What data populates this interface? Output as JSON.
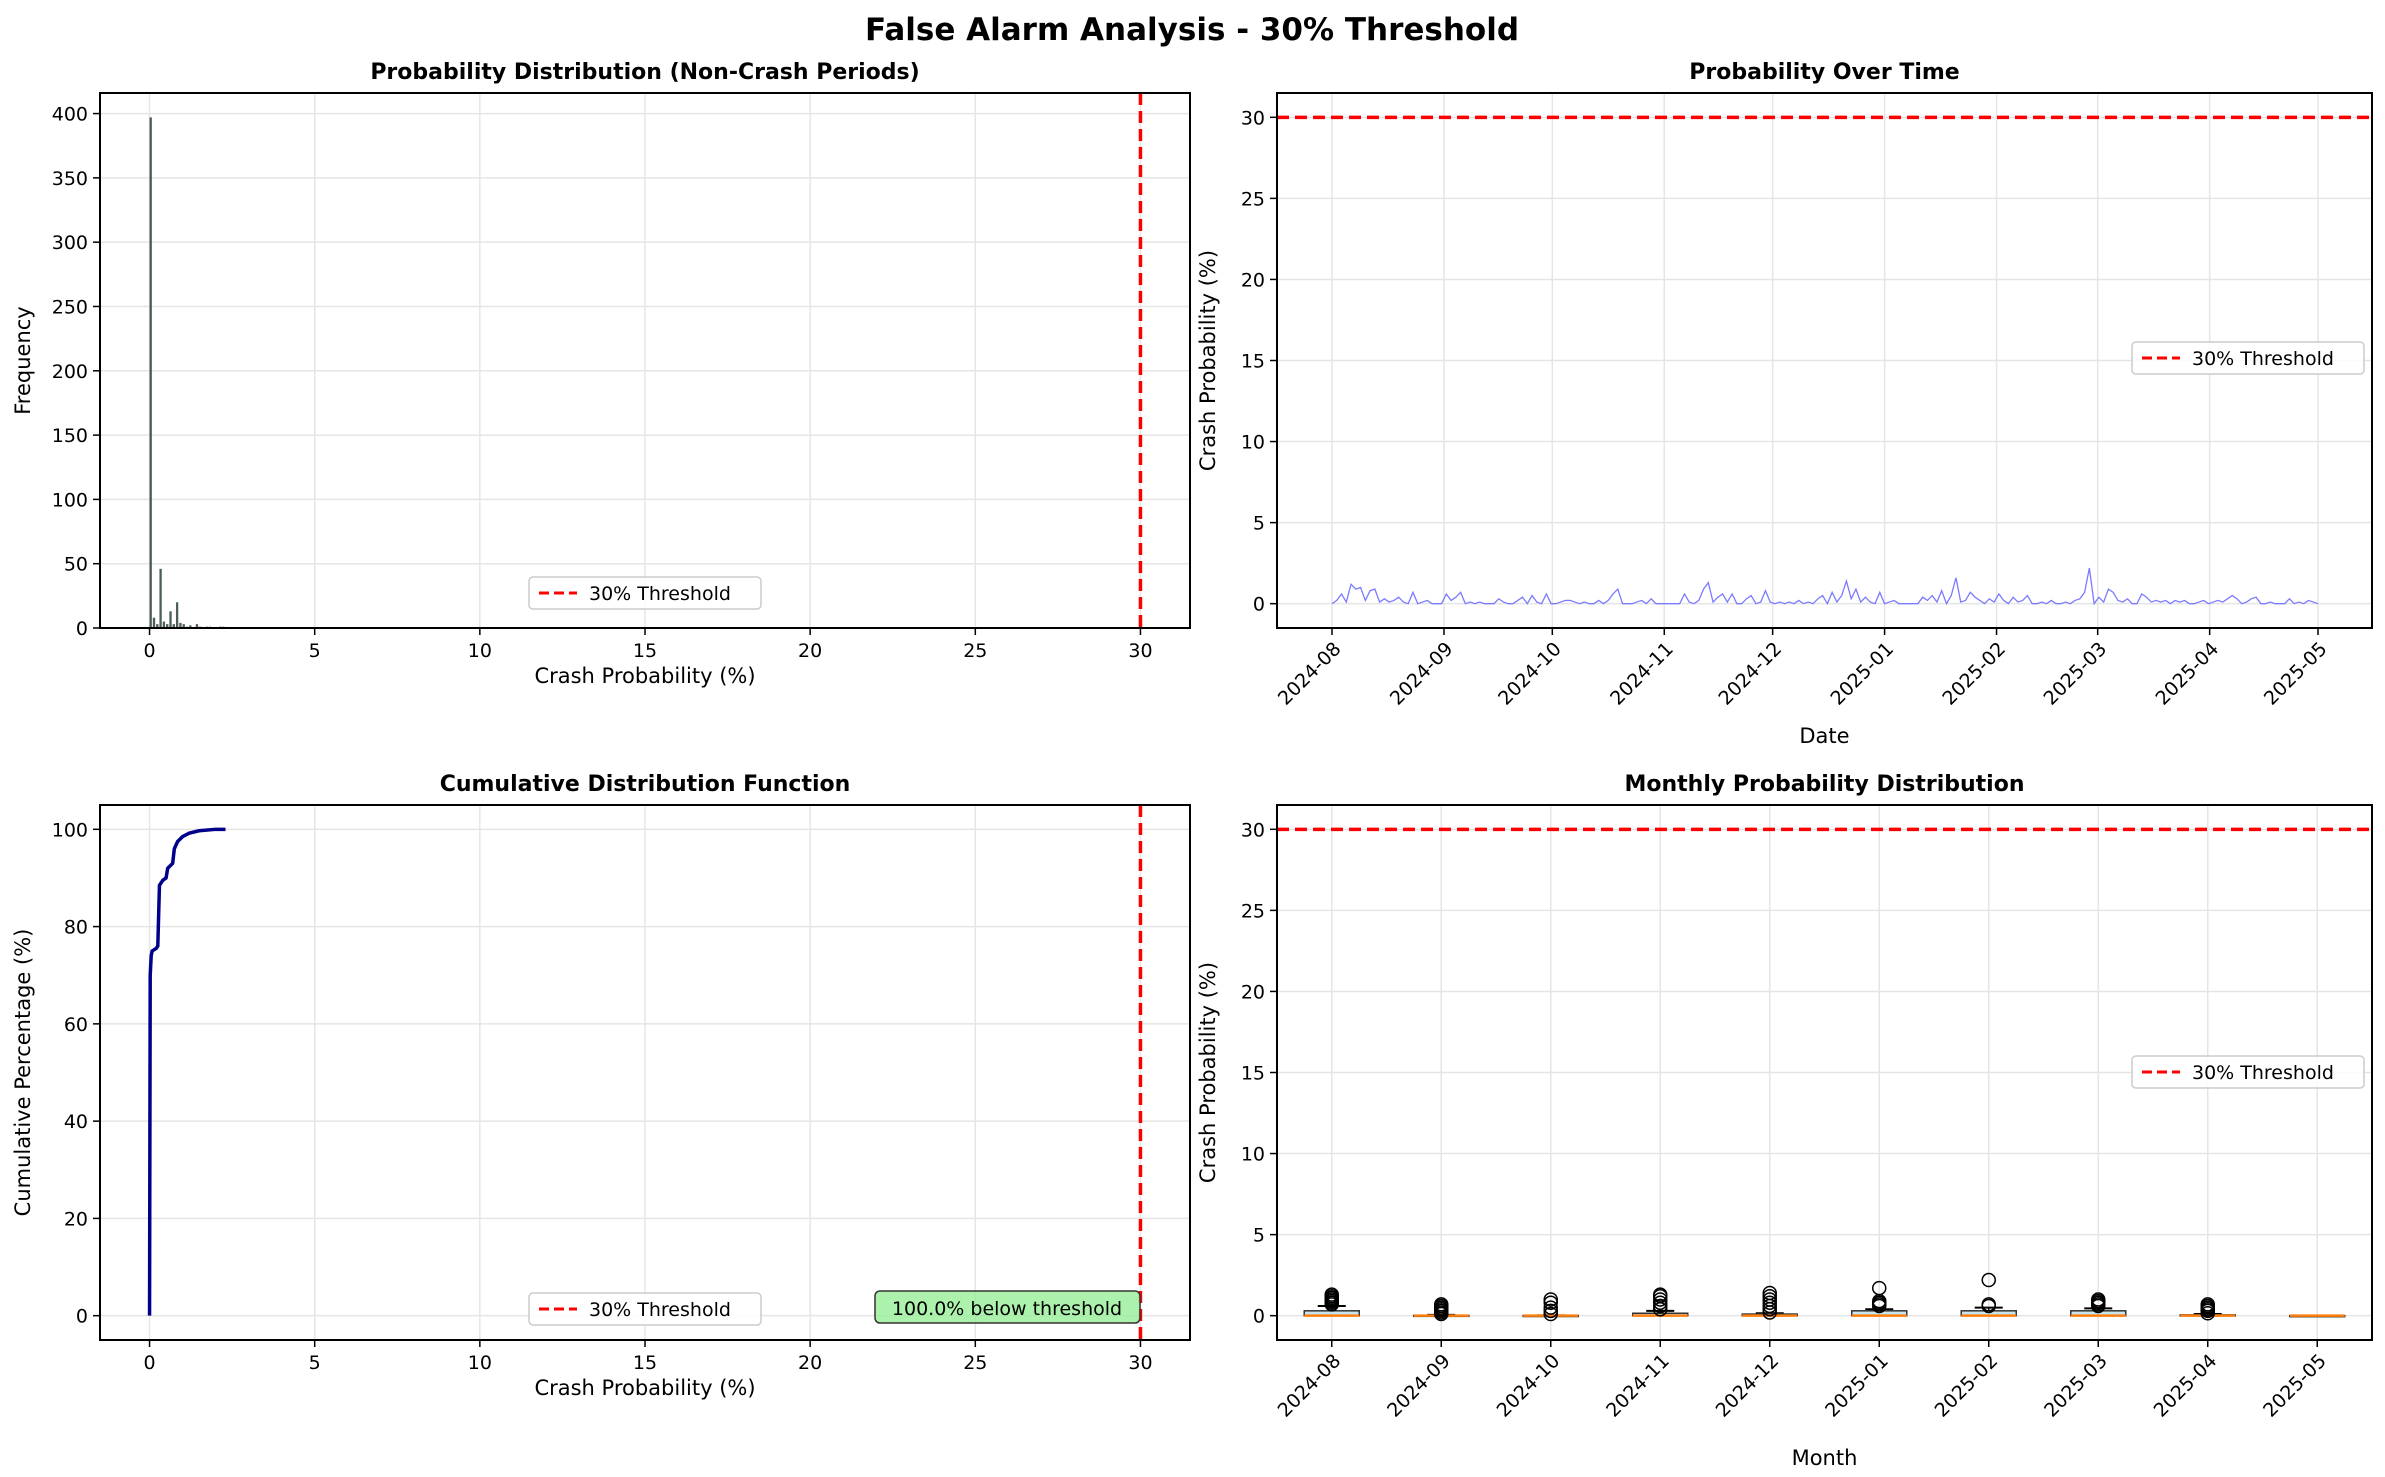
{
  "title": "False Alarm Analysis - 30% Threshold",
  "colors": {
    "threshold": "#ff0000",
    "hist": "#2f3f3f",
    "line": "#7b7bff",
    "cdf": "#00008b",
    "box_fill": "#add8e6",
    "median": "#ff7f0e",
    "annot_fill": "#90ee90",
    "grid": "#e5e5e5"
  },
  "chart_data": [
    {
      "type": "bar",
      "title": "Probability Distribution (Non-Crash Periods)",
      "xlabel": "Crash Probability (%)",
      "ylabel": "Frequency",
      "xlim": [
        -1.5,
        31.5
      ],
      "ylim": [
        0,
        416
      ],
      "xticks": [
        0,
        5,
        10,
        15,
        20,
        25,
        30
      ],
      "yticks": [
        0,
        50,
        100,
        150,
        200,
        250,
        300,
        350,
        400
      ],
      "bin_width": 0.1,
      "bin_starts": [
        0.0,
        0.1,
        0.2,
        0.3,
        0.4,
        0.5,
        0.6,
        0.7,
        0.8,
        0.9,
        1.0,
        1.1,
        1.2,
        1.3,
        1.4,
        1.5,
        1.6,
        1.7,
        1.8,
        1.9,
        2.0,
        2.1,
        2.2
      ],
      "counts": [
        397,
        8,
        3,
        46,
        5,
        3,
        13,
        3,
        20,
        4,
        3,
        1,
        2,
        0,
        3,
        1,
        0,
        1,
        1,
        0,
        0,
        1,
        1
      ],
      "threshold": 30,
      "legend": [
        "30% Threshold"
      ],
      "legend_loc": "lower center",
      "grid": true
    },
    {
      "type": "line",
      "title": "Probability Over Time",
      "xlabel": "Date",
      "ylabel": "Crash Probability (%)",
      "ylim": [
        -1.5,
        31.5
      ],
      "yticks": [
        0,
        5,
        10,
        15,
        20,
        25,
        30
      ],
      "xticks": [
        "2024-08",
        "2024-09",
        "2024-10",
        "2024-11",
        "2024-12",
        "2025-01",
        "2025-02",
        "2025-03",
        "2025-04",
        "2025-05"
      ],
      "start_date": "2024-08-01",
      "step_days": 2,
      "values": [
        0,
        0.2,
        0.6,
        0.1,
        1.2,
        0.9,
        1.0,
        0.2,
        0.8,
        0.9,
        0.1,
        0.3,
        0.1,
        0.2,
        0.4,
        0.1,
        0,
        0.7,
        0,
        0.1,
        0.2,
        0,
        0,
        0,
        0.6,
        0.2,
        0.4,
        0.7,
        0,
        0.1,
        0,
        0.1,
        0,
        0,
        0,
        0.3,
        0.1,
        0,
        0,
        0.2,
        0.4,
        0,
        0.5,
        0.1,
        0,
        0.6,
        0,
        0,
        0.1,
        0.2,
        0.2,
        0.1,
        0,
        0.1,
        0,
        0,
        0.2,
        0,
        0.2,
        0.6,
        0.9,
        0,
        0,
        0,
        0.1,
        0.2,
        0,
        0.3,
        0,
        0,
        0,
        0,
        0,
        0,
        0.6,
        0.1,
        0,
        0.2,
        0.9,
        1.3,
        0.1,
        0.4,
        0.6,
        0.1,
        0.6,
        0,
        0,
        0.3,
        0.5,
        0,
        0.1,
        0.8,
        0.1,
        0,
        0.1,
        0,
        0.1,
        0,
        0.2,
        0,
        0.1,
        0,
        0.3,
        0.5,
        0,
        0.7,
        0.1,
        0.5,
        1.4,
        0.3,
        0.9,
        0.1,
        0.4,
        0.1,
        0,
        0.7,
        0,
        0.1,
        0.2,
        0,
        0,
        0,
        0,
        0,
        0.4,
        0.2,
        0.5,
        0.1,
        0.8,
        0,
        0.5,
        1.6,
        0.1,
        0.2,
        0.7,
        0.4,
        0.2,
        0,
        0.3,
        0.1,
        0.6,
        0.2,
        0,
        0.4,
        0.1,
        0.2,
        0.5,
        0,
        0,
        0.1,
        0,
        0.2,
        0,
        0,
        0.1,
        0,
        0.2,
        0.3,
        0.7,
        2.2,
        0,
        0.4,
        0.1,
        0.9,
        0.7,
        0.2,
        0.1,
        0.3,
        0,
        0,
        0.6,
        0.4,
        0.1,
        0.2,
        0.1,
        0.2,
        0,
        0.2,
        0.1,
        0.2,
        0,
        0,
        0.1,
        0.2,
        0,
        0.1,
        0.2,
        0.1,
        0.3,
        0.5,
        0.3,
        0,
        0.1,
        0.3,
        0.4,
        0,
        0,
        0.1,
        0,
        0,
        0,
        0.3,
        0,
        0.1,
        0,
        0.2,
        0.1,
        0
      ],
      "threshold": 30,
      "legend": [
        "30% Threshold"
      ],
      "legend_loc": "center right",
      "grid": true
    },
    {
      "type": "line",
      "title": "Cumulative Distribution Function",
      "xlabel": "Crash Probability (%)",
      "ylabel": "Cumulative Percentage (%)",
      "xlim": [
        -1.5,
        31.5
      ],
      "ylim": [
        -5,
        105
      ],
      "xticks": [
        0,
        5,
        10,
        15,
        20,
        25,
        30
      ],
      "yticks": [
        0,
        20,
        40,
        60,
        80,
        100
      ],
      "x": [
        0,
        0.02,
        0.05,
        0.08,
        0.2,
        0.25,
        0.3,
        0.4,
        0.5,
        0.55,
        0.7,
        0.75,
        0.85,
        1.0,
        1.2,
        1.5,
        2.0,
        2.3
      ],
      "y": [
        0,
        70,
        74,
        75,
        75.5,
        76,
        88.5,
        89.5,
        90,
        92,
        93,
        96,
        97.5,
        98.5,
        99.2,
        99.7,
        100,
        100
      ],
      "threshold": 30,
      "annotation": "100.0% below threshold",
      "legend": [
        "30% Threshold"
      ],
      "legend_loc": "lower center",
      "grid": true
    },
    {
      "type": "box",
      "title": "Monthly Probability Distribution",
      "xlabel": "Month",
      "ylabel": "Crash Probability (%)",
      "ylim": [
        -1.5,
        31.5
      ],
      "yticks": [
        0,
        5,
        10,
        15,
        20,
        25,
        30
      ],
      "categories": [
        "2024-08",
        "2024-09",
        "2024-10",
        "2024-11",
        "2024-12",
        "2025-01",
        "2025-02",
        "2025-03",
        "2025-04",
        "2025-05"
      ],
      "boxes": [
        {
          "q1": 0,
          "median": 0,
          "q3": 0.3,
          "whisker_low": 0,
          "whisker_high": 0.6,
          "outliers": [
            0.7,
            0.8,
            0.9,
            1.0,
            1.1,
            1.2,
            1.3
          ]
        },
        {
          "q1": 0,
          "median": 0,
          "q3": 0.02,
          "whisker_low": 0,
          "whisker_high": 0.05,
          "outliers": [
            0.1,
            0.2,
            0.3,
            0.4,
            0.5,
            0.6,
            0.7
          ]
        },
        {
          "q1": 0,
          "median": 0,
          "q3": 0.01,
          "whisker_low": 0,
          "whisker_high": 0.02,
          "outliers": [
            0.1,
            0.3,
            0.5,
            0.8,
            1.0
          ]
        },
        {
          "q1": 0,
          "median": 0,
          "q3": 0.15,
          "whisker_low": 0,
          "whisker_high": 0.3,
          "outliers": [
            0.4,
            0.6,
            0.8,
            1.0,
            1.2,
            1.3
          ]
        },
        {
          "q1": 0,
          "median": 0,
          "q3": 0.1,
          "whisker_low": 0,
          "whisker_high": 0.15,
          "outliers": [
            0.2,
            0.4,
            0.6,
            0.8,
            1.0,
            1.2,
            1.4
          ]
        },
        {
          "q1": 0,
          "median": 0,
          "q3": 0.3,
          "whisker_low": 0,
          "whisker_high": 0.4,
          "outliers": [
            0.6,
            0.7,
            0.8,
            0.9,
            1.7
          ]
        },
        {
          "q1": 0,
          "median": 0,
          "q3": 0.3,
          "whisker_low": 0,
          "whisker_high": 0.5,
          "outliers": [
            0.6,
            0.7,
            2.2
          ]
        },
        {
          "q1": 0,
          "median": 0,
          "q3": 0.3,
          "whisker_low": 0,
          "whisker_high": 0.45,
          "outliers": [
            0.6,
            0.7,
            0.8,
            0.9,
            1.0
          ]
        },
        {
          "q1": 0,
          "median": 0,
          "q3": 0.05,
          "whisker_low": 0,
          "whisker_high": 0.1,
          "outliers": [
            0.15,
            0.3,
            0.4,
            0.5,
            0.6,
            0.7
          ]
        },
        {
          "q1": 0,
          "median": 0,
          "q3": 0,
          "whisker_low": 0,
          "whisker_high": 0,
          "outliers": []
        }
      ],
      "threshold": 30,
      "legend": [
        "30% Threshold"
      ],
      "legend_loc": "center right",
      "grid": true
    }
  ]
}
